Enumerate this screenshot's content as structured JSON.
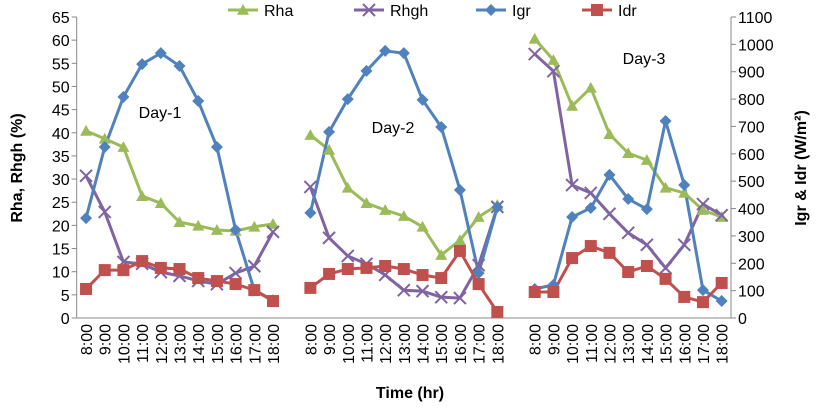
{
  "chart_data": {
    "type": "line",
    "y_label": "Rha, Rhgh (%)",
    "y2_label": "Igr & Idr (W/m²)",
    "x_label": "Time (hr)",
    "annotations": [
      "Day-1",
      "Day-2",
      "Day-3"
    ],
    "categories": [
      "8:00",
      "9:00",
      "10:00",
      "11:00",
      "12:00",
      "13:00",
      "14:00",
      "15:00",
      "16:00",
      "17:00",
      "18:00",
      null,
      "8:00",
      "9:00",
      "10:00",
      "11:00",
      "12:00",
      "13:00",
      "14:00",
      "15:00",
      "16:00",
      "17:00",
      "18:00",
      null,
      "8:00",
      "9:00",
      "10:00",
      "11:00",
      "12:00",
      "13:00",
      "14:00",
      "15:00",
      "16:00",
      "17:00",
      "18:00"
    ],
    "ylim": [
      0,
      65
    ],
    "yticks": [
      0,
      5,
      10,
      15,
      20,
      25,
      30,
      35,
      40,
      45,
      50,
      55,
      60,
      65
    ],
    "y2lim": [
      0,
      1100
    ],
    "y2ticks": [
      0,
      100,
      200,
      300,
      400,
      500,
      600,
      700,
      800,
      900,
      1000,
      1100
    ],
    "legend": "top",
    "series": [
      {
        "name": "Rha",
        "color": "#9bbb59",
        "marker": "triangle",
        "axis": "y",
        "values": [
          40.4,
          38.7,
          36.9,
          26.3,
          24.8,
          20.7,
          19.9,
          19,
          18.8,
          19.7,
          20.3,
          null,
          39.5,
          36.3,
          28.1,
          24.8,
          23.3,
          22,
          19.7,
          13.6,
          16.8,
          21.8,
          24.4,
          null,
          60.3,
          55.7,
          45.8,
          49.7,
          39.7,
          35.6,
          34.1,
          28.1,
          27,
          23.3,
          21.8
        ]
      },
      {
        "name": "Rhgh",
        "color": "#8064a2",
        "marker": "cross",
        "axis": "y",
        "values": [
          30.7,
          22.9,
          12.1,
          11.7,
          9.9,
          9.1,
          8,
          7.3,
          9.7,
          11.2,
          18.6,
          null,
          28.3,
          17.3,
          13.4,
          11.7,
          9.3,
          6,
          5.8,
          4.5,
          4.3,
          11.4,
          24,
          null,
          57,
          53.3,
          28.7,
          27,
          22.5,
          18.4,
          15.8,
          10.8,
          15.8,
          24.6,
          22.2
        ]
      },
      {
        "name": "Igr",
        "color": "#4f81bd",
        "marker": "diamond",
        "axis": "y2",
        "values": [
          365,
          625,
          808,
          928,
          968,
          921,
          793,
          625,
          322,
          102,
          65,
          null,
          384,
          680,
          800,
          903,
          976,
          968,
          797,
          698,
          468,
          164,
          405,
          null,
          106,
          121,
          369,
          402,
          523,
          435,
          398,
          720,
          486,
          102,
          62
        ]
      },
      {
        "name": "Idr",
        "color": "#c0504d",
        "marker": "square",
        "axis": "y2",
        "values": [
          106,
          175,
          175,
          208,
          183,
          179,
          146,
          135,
          124,
          102,
          62,
          null,
          110,
          161,
          179,
          183,
          190,
          179,
          157,
          146,
          245,
          124,
          22,
          null,
          95,
          95,
          219,
          263,
          238,
          168,
          190,
          143,
          77,
          58,
          128
        ]
      }
    ]
  }
}
